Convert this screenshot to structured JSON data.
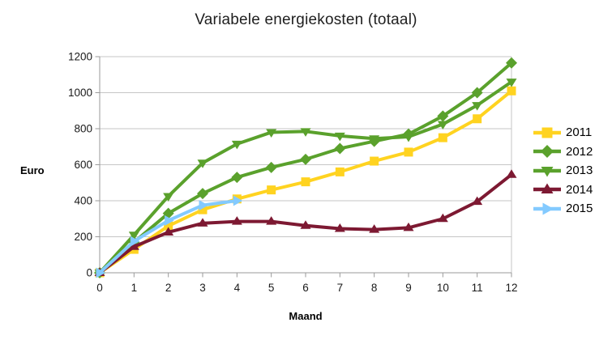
{
  "chart_data": {
    "type": "line",
    "title": "Variabele energiekosten (totaal)",
    "xlabel": "Maand",
    "ylabel": "Euro",
    "categories": [
      0,
      1,
      2,
      3,
      4,
      5,
      6,
      7,
      8,
      9,
      10,
      11,
      12
    ],
    "ylim": [
      0,
      1200
    ],
    "y_tick_step": 200,
    "y_ticks": [
      0,
      200,
      400,
      600,
      800,
      1000,
      1200
    ],
    "grid": true,
    "legend_position": "right",
    "series": [
      {
        "name": "2011",
        "color": "#FFD320",
        "marker": "square",
        "values": [
          0,
          130,
          260,
          350,
          410,
          460,
          505,
          560,
          620,
          670,
          750,
          855,
          1010
        ]
      },
      {
        "name": "2012",
        "color": "#5AA12C",
        "marker": "diamond",
        "values": [
          0,
          170,
          330,
          440,
          530,
          585,
          630,
          690,
          730,
          770,
          870,
          1000,
          1165
        ]
      },
      {
        "name": "2013",
        "color": "#5AA12C",
        "marker": "triangle-down",
        "values": [
          0,
          210,
          425,
          610,
          715,
          780,
          785,
          760,
          745,
          755,
          825,
          930,
          1060
        ]
      },
      {
        "name": "2014",
        "color": "#7D1932",
        "marker": "triangle-up",
        "values": [
          0,
          145,
          225,
          275,
          285,
          285,
          262,
          245,
          240,
          250,
          300,
          395,
          545
        ]
      },
      {
        "name": "2015",
        "color": "#83CAFF",
        "marker": "triangle-right",
        "values": [
          0,
          175,
          290,
          375,
          400
        ]
      }
    ],
    "colors": {
      "grid": "#c6c6c6",
      "axis": "#9a9a9a",
      "text": "#1a1a1a"
    }
  }
}
